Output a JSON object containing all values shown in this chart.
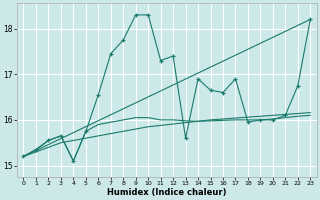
{
  "xlabel": "Humidex (Indice chaleur)",
  "background_color": "#cce8e8",
  "grid_color": "#ffffff",
  "line_color": "#1a7a6e",
  "xlim": [
    -0.5,
    23.5
  ],
  "ylim": [
    14.75,
    18.55
  ],
  "yticks": [
    15,
    16,
    17,
    18
  ],
  "xticks": [
    0,
    1,
    2,
    3,
    4,
    5,
    6,
    7,
    8,
    9,
    10,
    11,
    12,
    13,
    14,
    15,
    16,
    17,
    18,
    19,
    20,
    21,
    22,
    23
  ],
  "series1_x": [
    0,
    1,
    2,
    3,
    4,
    5,
    6,
    7,
    8,
    9,
    10,
    11,
    12,
    13,
    14,
    15,
    16,
    17,
    18,
    19,
    20,
    21,
    22,
    23
  ],
  "series1_y": [
    15.2,
    15.35,
    15.55,
    15.65,
    15.1,
    15.75,
    16.55,
    17.45,
    17.75,
    18.3,
    18.3,
    17.3,
    17.4,
    15.6,
    16.9,
    16.65,
    16.6,
    16.9,
    15.95,
    16.0,
    16.0,
    16.1,
    16.75,
    18.2
  ],
  "series2_x": [
    0,
    23
  ],
  "series2_y": [
    15.2,
    18.2
  ],
  "series3_x": [
    0,
    1,
    2,
    3,
    4,
    5,
    6,
    7,
    8,
    9,
    10,
    11,
    12,
    13,
    14,
    15,
    16,
    17,
    18,
    19,
    20,
    21,
    22,
    23
  ],
  "series3_y": [
    15.2,
    15.3,
    15.4,
    15.5,
    15.55,
    15.6,
    15.65,
    15.7,
    15.75,
    15.8,
    15.85,
    15.88,
    15.91,
    15.94,
    15.97,
    16.0,
    16.02,
    16.04,
    16.06,
    16.08,
    16.1,
    16.12,
    16.14,
    16.16
  ],
  "series4_x": [
    0,
    1,
    2,
    3,
    4,
    5,
    6,
    7,
    8,
    9,
    10,
    11,
    12,
    13,
    14,
    15,
    16,
    17,
    18,
    19,
    20,
    21,
    22,
    23
  ],
  "series4_y": [
    15.2,
    15.35,
    15.55,
    15.65,
    15.1,
    15.75,
    15.9,
    15.95,
    16.0,
    16.05,
    16.05,
    16.0,
    16.0,
    15.98,
    15.97,
    15.98,
    15.99,
    16.0,
    16.0,
    16.0,
    16.02,
    16.05,
    16.08,
    16.1
  ]
}
